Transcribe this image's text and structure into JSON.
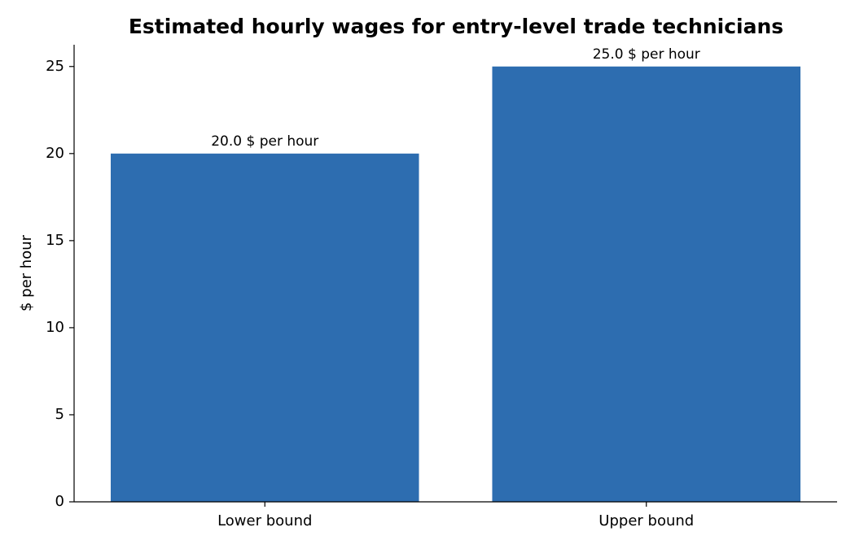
{
  "chart_data": {
    "type": "bar",
    "title": "Estimated hourly wages for entry-level trade technicians",
    "ylabel": "$ per hour",
    "categories": [
      "Lower bound",
      "Upper bound"
    ],
    "values": [
      20.0,
      25.0
    ],
    "value_labels": [
      "20.0 $ per hour",
      "25.0 $ per hour"
    ],
    "color": "#2d6db0",
    "ylim": [
      0,
      26.25
    ],
    "yticks": [
      0,
      5,
      10,
      15,
      20,
      25
    ],
    "grid": false
  }
}
